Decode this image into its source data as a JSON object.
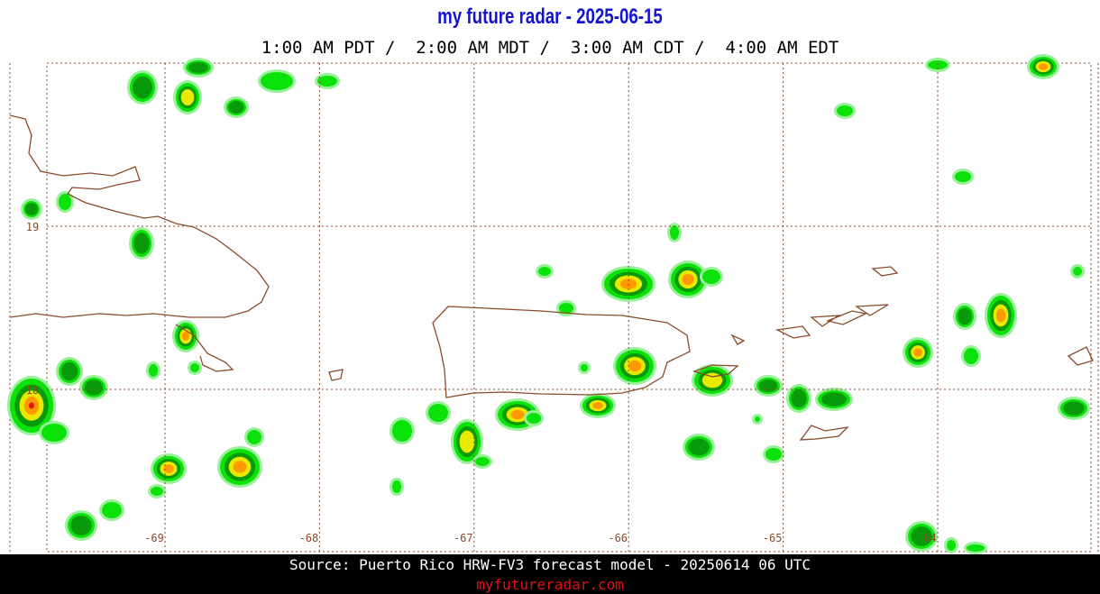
{
  "header": {
    "title": "my future radar - 2025-06-15",
    "times": "1:00 AM PDT /  2:00 AM MDT /  3:00 AM CDT /  4:00 AM EDT"
  },
  "map": {
    "lon_ticks": [
      -69,
      -68,
      -67,
      -66,
      -65,
      -64
    ],
    "lat_ticks": [
      19,
      18
    ]
  },
  "footer": {
    "source": "Source: Puerto Rico HRW-FV3 forecast model - 20250614 06 UTC",
    "site": "myfutureradar.com"
  }
}
